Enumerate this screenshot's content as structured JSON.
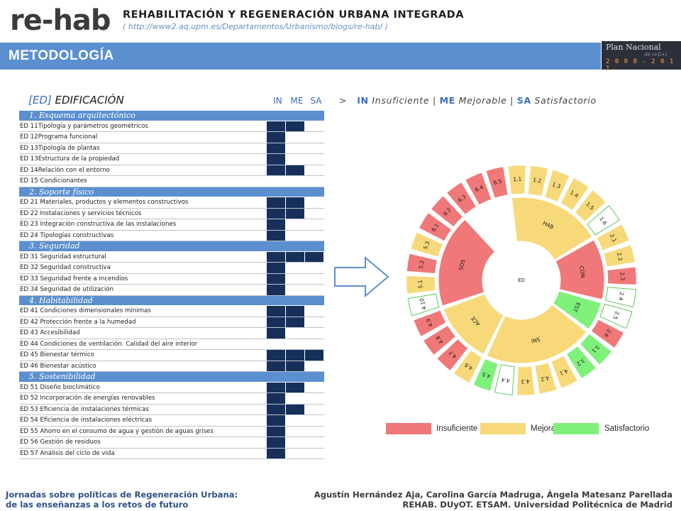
{
  "header": {
    "logo": "re-hab",
    "title": "REHABILITACIÓN Y REGENERACIÓN URBANA INTEGRADA",
    "url": "( http://www2.aq.upm.es/Departamentos/Urbanismo/blogs/re-hab/ )"
  },
  "banner": {
    "title": "METODOLOGÍA"
  },
  "plan": {
    "name": "Plan Nacional",
    "sub": "de I+D+i",
    "years": "2 0 0 8 - 2 0 1 1"
  },
  "section": {
    "code": "[ED]",
    "name": "EDIFICACIÓN",
    "columns": [
      "IN",
      "ME",
      "SA"
    ]
  },
  "legend_line": {
    "prefix": ">",
    "in_key": "IN",
    "in_text": "Insuficiente",
    "sep": "|",
    "me_key": "ME",
    "me_text": "Mejorable",
    "sa_key": "SA",
    "sa_text": "Satisfactorio"
  },
  "categories": [
    {
      "title": "1. Esquema arquitectónico",
      "rows": [
        {
          "label": "ED 11Tipología y parámetros geométricos",
          "level": 2
        },
        {
          "label": "ED 12Programa funcional",
          "level": 1
        },
        {
          "label": "ED 13Tipología de plantas",
          "level": 1
        },
        {
          "label": "ED 13Estructura  de la propiedad",
          "level": 1
        },
        {
          "label": "ED 14Relación con el entorno",
          "level": 2
        },
        {
          "label": "ED 15 Condicionantes",
          "level": 0
        }
      ]
    },
    {
      "title": "2. Soporte físico",
      "rows": [
        {
          "label": "ED 21 Materiales, productos y elementos constructivos",
          "level": 2
        },
        {
          "label": "ED 22 Instalaciones y servicios técnicos",
          "level": 2
        },
        {
          "label": "ED 23 Integración constructiva de las instalaciones",
          "level": 1
        },
        {
          "label": "ED 24  Tipologías constructivas",
          "level": 1
        }
      ]
    },
    {
      "title": "3. Seguridad",
      "rows": [
        {
          "label": "ED 31 Seguridad estructural",
          "level": 3
        },
        {
          "label": "ED 32 Seguridad constructiva",
          "level": 1
        },
        {
          "label": "ED 33 Seguridad frente a incendios",
          "level": 1
        },
        {
          "label": "ED 34 Seguridad de utilización",
          "level": 1
        }
      ]
    },
    {
      "title": "4. Habitabilidad",
      "rows": [
        {
          "label": "ED 41 Condiciones dimensionales mínimas",
          "level": 2
        },
        {
          "label": "ED 42 Protección frente a la humedad",
          "level": 2
        },
        {
          "label": "ED 43 Accesibilidad",
          "level": 1
        },
        {
          "label": "ED 44 Condiciones de ventilación. Calidad del aire interior",
          "level": 0
        },
        {
          "label": "ED 45 Bienestar térmico",
          "level": 3
        },
        {
          "label": "ED 46 Bienestar acústico",
          "level": 2
        }
      ]
    },
    {
      "title": "5. Sostenibilidad",
      "rows": [
        {
          "label": "ED 51 Diseño bioclimático",
          "level": 2
        },
        {
          "label": "ED 52 Incorporación de energías renovables",
          "level": 1
        },
        {
          "label": "ED 53 Eficiencia de instalaciones térmicas",
          "level": 2
        },
        {
          "label": "ED 54 Eficiencia de instalaciones eléctricas",
          "level": 1
        },
        {
          "label": "ED 55 Ahorro en el consumo de agua y gestión de aguas grises",
          "level": 1
        },
        {
          "label": "ED 56 Gestión de residuos",
          "level": 1
        },
        {
          "label": "ED 57 Análisis del ciclo de vida",
          "level": 1
        }
      ]
    }
  ],
  "wheel": {
    "center": "ED",
    "colors": {
      "IN": "#f07878",
      "ME": "#f7d97a",
      "SA": "#7ff07a",
      "white": "#ffffff"
    },
    "sectors": [
      {
        "label": "HAB",
        "span": 6,
        "status": "ME"
      },
      {
        "label": "CON",
        "span": 4,
        "status": "IN"
      },
      {
        "label": "EST",
        "span": 2,
        "status": "SA"
      },
      {
        "label": "SNI",
        "span": 7,
        "status": "ME"
      },
      {
        "label": "ACE",
        "span": 4,
        "status": "ME"
      },
      {
        "label": "SOS",
        "span": 6,
        "status": "IN"
      }
    ],
    "items": [
      {
        "label": "1.1",
        "status": "ME"
      },
      {
        "label": "1.2",
        "status": "ME"
      },
      {
        "label": "1.3",
        "status": "ME"
      },
      {
        "label": "1.4",
        "status": "ME"
      },
      {
        "label": "1.5",
        "status": "ME"
      },
      {
        "label": "1.6",
        "status": "white"
      },
      {
        "label": "2.1",
        "status": "ME"
      },
      {
        "label": "2.2",
        "status": "ME"
      },
      {
        "label": "2.3",
        "status": "IN"
      },
      {
        "label": "2.4",
        "status": "white"
      },
      {
        "label": "2.5",
        "status": "white"
      },
      {
        "label": "2.6",
        "status": "IN"
      },
      {
        "label": "3.1",
        "status": "SA"
      },
      {
        "label": "3.2",
        "status": "SA"
      },
      {
        "label": "4.1",
        "status": "ME"
      },
      {
        "label": "4.2",
        "status": "ME"
      },
      {
        "label": "4.3",
        "status": "ME"
      },
      {
        "label": "4.4",
        "status": "white"
      },
      {
        "label": "4.5",
        "status": "SA"
      },
      {
        "label": "4.6",
        "status": "ME"
      },
      {
        "label": "4.7",
        "status": "IN"
      },
      {
        "label": "4.8",
        "status": "IN"
      },
      {
        "label": "4.9",
        "status": "IN"
      },
      {
        "label": "4.10",
        "status": "white"
      },
      {
        "label": "5.1",
        "status": "ME"
      },
      {
        "label": "5.2",
        "status": "IN"
      },
      {
        "label": "5.3",
        "status": "ME"
      },
      {
        "label": "6.1",
        "status": "IN"
      },
      {
        "label": "6.2",
        "status": "IN"
      },
      {
        "label": "6.3",
        "status": "IN"
      },
      {
        "label": "6.4",
        "status": "IN"
      },
      {
        "label": "6.5",
        "status": "IN"
      }
    ]
  },
  "legend": [
    {
      "label": "Insuficiente",
      "color": "#f07878"
    },
    {
      "label": "Mejorable",
      "color": "#f7d97a"
    },
    {
      "label": "Satisfactorio",
      "color": "#7ff07a"
    }
  ],
  "footer": {
    "left_1": "Jornadas sobre políticas de Regeneración Urbana:",
    "left_2": "de las enseñanzas a los retos de futuro",
    "right_1": "Agustín Hernández Aja, Carolina García Madruga, Ángela Matesanz Parellada",
    "right_2": "REHAB. DUyOT. ETSAM. Universidad Politécnica de Madrid"
  }
}
